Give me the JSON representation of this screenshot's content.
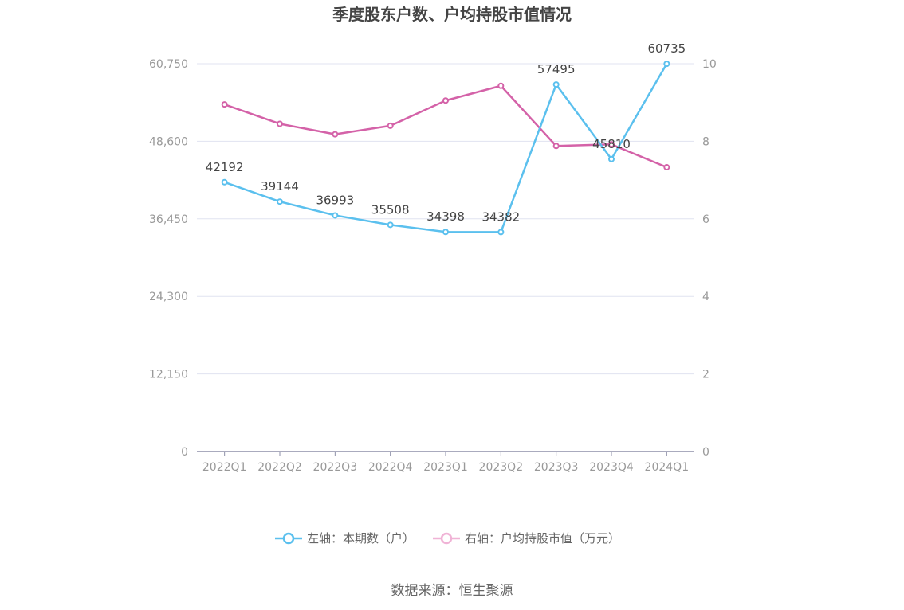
{
  "chart_data": {
    "type": "line",
    "title": "季度股东户数、户均持股市值情况",
    "categories": [
      "2022Q1",
      "2022Q2",
      "2022Q3",
      "2022Q4",
      "2023Q1",
      "2023Q2",
      "2023Q3",
      "2023Q4",
      "2024Q1"
    ],
    "left_axis": {
      "ylim": [
        0,
        60750
      ],
      "ticks": [
        "0",
        "12,150",
        "24,300",
        "36,450",
        "48,600",
        "60,750"
      ]
    },
    "right_axis": {
      "ylim": [
        0,
        10
      ],
      "ticks": [
        "0",
        "2",
        "4",
        "6",
        "8",
        "10"
      ]
    },
    "series": [
      {
        "name": "左轴：本期数（户）",
        "axis": "left",
        "color": "#5bc0ee",
        "values": [
          42192,
          39144,
          36993,
          35508,
          34398,
          34382,
          57495,
          45810,
          60735
        ],
        "labels": [
          "42192",
          "39144",
          "36993",
          "35508",
          "34398",
          "34382",
          "57495",
          "45810",
          "60735"
        ]
      },
      {
        "name": "右轴：户均持股市值（万元）",
        "axis": "right",
        "color": "#d462a8",
        "legend_color": "#f0b3d6",
        "values": [
          8.95,
          8.45,
          8.18,
          8.4,
          9.05,
          9.43,
          7.88,
          7.92,
          7.33
        ]
      }
    ],
    "grid": true,
    "legend_position": "bottom"
  },
  "source": "数据来源：恒生聚源"
}
